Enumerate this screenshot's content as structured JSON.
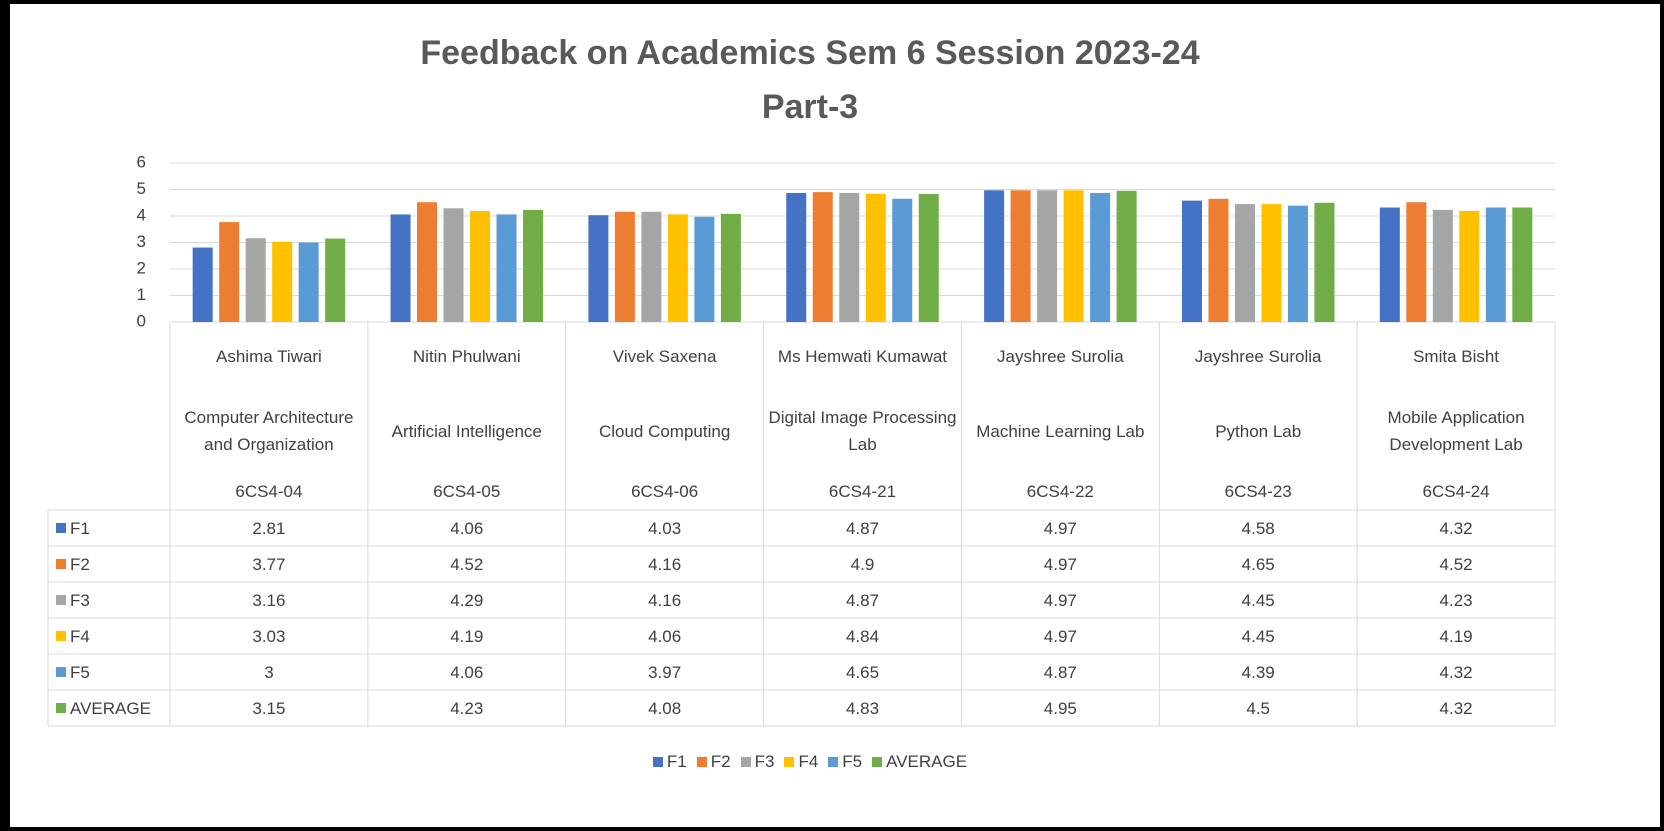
{
  "chart_data": {
    "type": "bar",
    "title": "Feedback on Academics Sem 6 Session 2023-24",
    "subtitle": "Part-3",
    "categories": [
      {
        "name": "Ashima Tiwari",
        "subject": "Computer Architecture and Organization",
        "code": "6CS4-04"
      },
      {
        "name": "Nitin Phulwani",
        "subject": "Artificial Intelligence",
        "code": "6CS4-05"
      },
      {
        "name": "Vivek Saxena",
        "subject": "Cloud Computing",
        "code": "6CS4-06"
      },
      {
        "name": "Ms Hemwati Kumawat",
        "subject": "Digital Image Processing Lab",
        "code": "6CS4-21"
      },
      {
        "name": "Jayshree Surolia",
        "subject": "Machine Learning Lab",
        "code": "6CS4-22"
      },
      {
        "name": "Jayshree Surolia",
        "subject": "Python Lab",
        "code": "6CS4-23"
      },
      {
        "name": "Smita Bisht",
        "subject": "Mobile Application Development Lab",
        "code": "6CS4-24"
      }
    ],
    "series": [
      {
        "name": "F1",
        "color": "#4472c4",
        "values": [
          2.81,
          4.06,
          4.03,
          4.87,
          4.97,
          4.58,
          4.32
        ]
      },
      {
        "name": "F2",
        "color": "#ed7d31",
        "values": [
          3.77,
          4.52,
          4.16,
          4.9,
          4.97,
          4.65,
          4.52
        ]
      },
      {
        "name": "F3",
        "color": "#a5a5a5",
        "values": [
          3.16,
          4.29,
          4.16,
          4.87,
          4.97,
          4.45,
          4.23
        ]
      },
      {
        "name": "F4",
        "color": "#ffc000",
        "values": [
          3.03,
          4.19,
          4.06,
          4.84,
          4.97,
          4.45,
          4.19
        ]
      },
      {
        "name": "F5",
        "color": "#5b9bd5",
        "values": [
          3,
          4.06,
          3.97,
          4.65,
          4.87,
          4.39,
          4.32
        ]
      },
      {
        "name": "AVERAGE",
        "color": "#70ad47",
        "values": [
          3.15,
          4.23,
          4.08,
          4.83,
          4.95,
          4.5,
          4.32
        ]
      }
    ],
    "ylim": [
      0,
      6
    ],
    "yticks": [
      0,
      1,
      2,
      3,
      4,
      5,
      6
    ],
    "grid": true
  }
}
